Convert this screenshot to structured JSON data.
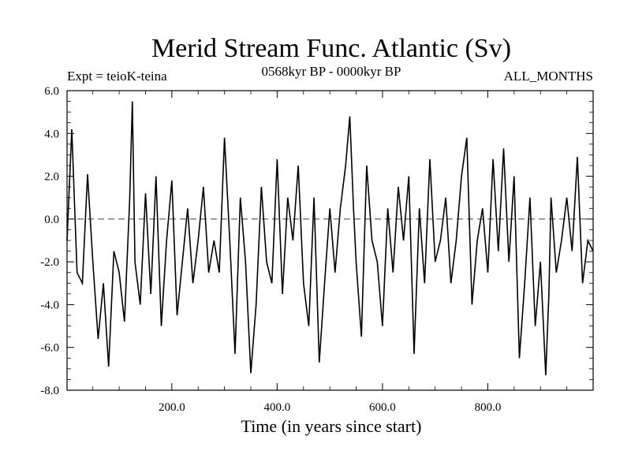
{
  "chart_data": {
    "type": "line",
    "title": "Merid Stream Func. Atlantic (Sv)",
    "subtitle": "0568kyr BP - 0000kyr BP",
    "annotation_left": "Expt = teioK-teina",
    "annotation_right": "ALL_MONTHS",
    "xlabel": "Time (in years since start)",
    "ylabel": "",
    "xlim": [
      1,
      1000
    ],
    "ylim": [
      -8,
      6
    ],
    "xticks": [
      200,
      400,
      600,
      800
    ],
    "xtick_labels": [
      "200.0",
      "400.0",
      "600.0",
      "800.0"
    ],
    "yticks": [
      6,
      4,
      2,
      0,
      -2,
      -4,
      -6,
      -8
    ],
    "ytick_labels": [
      "6.0",
      "4.0",
      "2.0",
      "0.0",
      "-2.0",
      "-4.0",
      "-6.0",
      "-8.0"
    ],
    "reference_line": 0,
    "line_color": "#000000",
    "x": [
      1,
      10,
      20,
      30,
      40,
      50,
      60,
      70,
      80,
      90,
      100,
      110,
      120,
      125,
      130,
      140,
      150,
      160,
      170,
      180,
      190,
      200,
      210,
      220,
      230,
      240,
      250,
      260,
      270,
      280,
      290,
      300,
      310,
      320,
      330,
      340,
      350,
      360,
      370,
      380,
      390,
      400,
      410,
      420,
      430,
      440,
      450,
      460,
      470,
      480,
      490,
      500,
      510,
      520,
      530,
      538,
      545,
      550,
      560,
      570,
      580,
      590,
      600,
      610,
      620,
      630,
      640,
      650,
      660,
      670,
      680,
      690,
      700,
      710,
      720,
      730,
      740,
      750,
      760,
      770,
      780,
      790,
      800,
      810,
      820,
      830,
      840,
      850,
      860,
      870,
      880,
      890,
      900,
      910,
      916,
      920,
      930,
      940,
      950,
      960,
      970,
      980,
      990,
      1000
    ],
    "values": [
      -1.0,
      4.2,
      -2.5,
      -3.0,
      2.1,
      -2.0,
      -5.6,
      -3.0,
      -6.9,
      -1.5,
      -2.5,
      -4.8,
      1.0,
      5.5,
      -2.0,
      -4.0,
      1.2,
      -3.5,
      2.0,
      -5.0,
      -1.0,
      1.8,
      -4.5,
      -2.0,
      0.5,
      -3.0,
      -1.0,
      1.5,
      -2.5,
      -1.0,
      -2.5,
      3.8,
      -1.0,
      -6.3,
      1.0,
      -2.0,
      -7.2,
      -4.0,
      1.5,
      -2.0,
      -3.0,
      2.8,
      -3.5,
      1.0,
      -1.0,
      2.5,
      -3.0,
      -5.0,
      1.0,
      -6.7,
      -3.0,
      0.5,
      -2.5,
      0.5,
      2.5,
      4.8,
      0.5,
      -2.0,
      -5.5,
      2.5,
      -1.0,
      -2.0,
      -5.0,
      0.5,
      -2.5,
      1.5,
      -1.0,
      2.0,
      -6.3,
      0.5,
      -3.0,
      2.8,
      -2.0,
      -1.0,
      1.0,
      -3.0,
      -1.0,
      2.0,
      3.8,
      -4.0,
      -1.0,
      0.5,
      -2.5,
      2.8,
      -1.5,
      3.3,
      -2.0,
      2.0,
      -6.5,
      -3.0,
      1.0,
      -5.0,
      -2.0,
      -7.3,
      -3.5,
      1.0,
      -2.5,
      -1.0,
      1.0,
      -1.5,
      2.9,
      -3.0,
      -1.0,
      -1.5
    ]
  }
}
